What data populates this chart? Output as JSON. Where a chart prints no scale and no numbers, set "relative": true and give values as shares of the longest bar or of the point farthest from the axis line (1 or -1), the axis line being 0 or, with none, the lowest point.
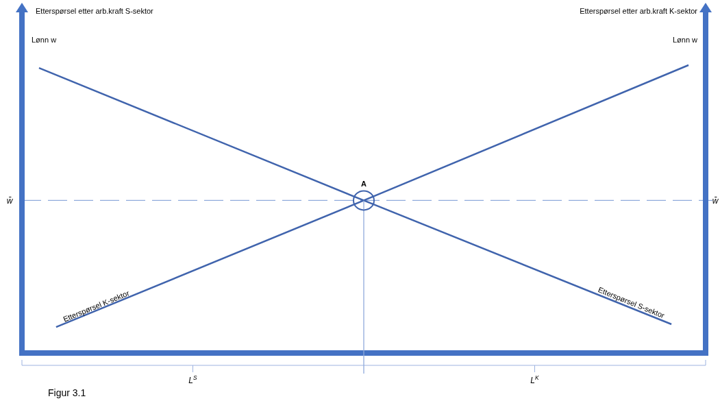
{
  "chart_data": {
    "type": "line",
    "relative": true,
    "title": "Etterspørsel etter arb.kraft S-sektor",
    "subtitle": "Etterspørsel etter arb.kraft K-sektor",
    "ylabel": "Lønn w",
    "y2label": "Lønn w",
    "categories": [
      null,
      null,
      null,
      null,
      null,
      null,
      null,
      null,
      null,
      null,
      "L$^{S}$",
      null,
      null,
      null,
      null,
      null,
      null,
      null,
      null,
      null,
      null,
      null,
      null,
      null,
      null,
      null,
      null,
      null,
      null,
      null,
      "L$^{K}$",
      null,
      null,
      null,
      null,
      null,
      null,
      null,
      null,
      null,
      null
    ],
    "series": [
      {
        "name": "Etterspørsel S-sektor",
        "color": "#4064ad",
        "values": [
          null,
          0.99,
          null,
          null,
          null,
          null,
          null,
          null,
          null,
          null,
          null,
          null,
          null,
          null,
          null,
          null,
          null,
          null,
          null,
          null,
          0.53,
          null,
          null,
          null,
          null,
          null,
          null,
          null,
          null,
          null,
          null,
          null,
          null,
          null,
          null,
          null,
          null,
          null,
          0.1,
          null,
          null
        ]
      },
      {
        "name": "Etterspørsel K-sektor",
        "color": "#4064ad",
        "values": [
          null,
          null,
          0.09,
          null,
          null,
          null,
          null,
          null,
          null,
          null,
          null,
          null,
          null,
          null,
          null,
          null,
          null,
          null,
          null,
          null,
          0.53,
          null,
          null,
          null,
          null,
          null,
          null,
          null,
          null,
          null,
          null,
          null,
          null,
          null,
          null,
          null,
          null,
          null,
          null,
          1,
          null
        ]
      }
    ],
    "ref_lines": [
      {
        "axis": "y",
        "value": 0.53,
        "label": "w̄",
        "color": "#8faadc",
        "line_style": "dashed"
      }
    ],
    "annotations": [
      "A",
      "Figur 3.1"
    ],
    "marker": "none",
    "line_style": "solid"
  }
}
